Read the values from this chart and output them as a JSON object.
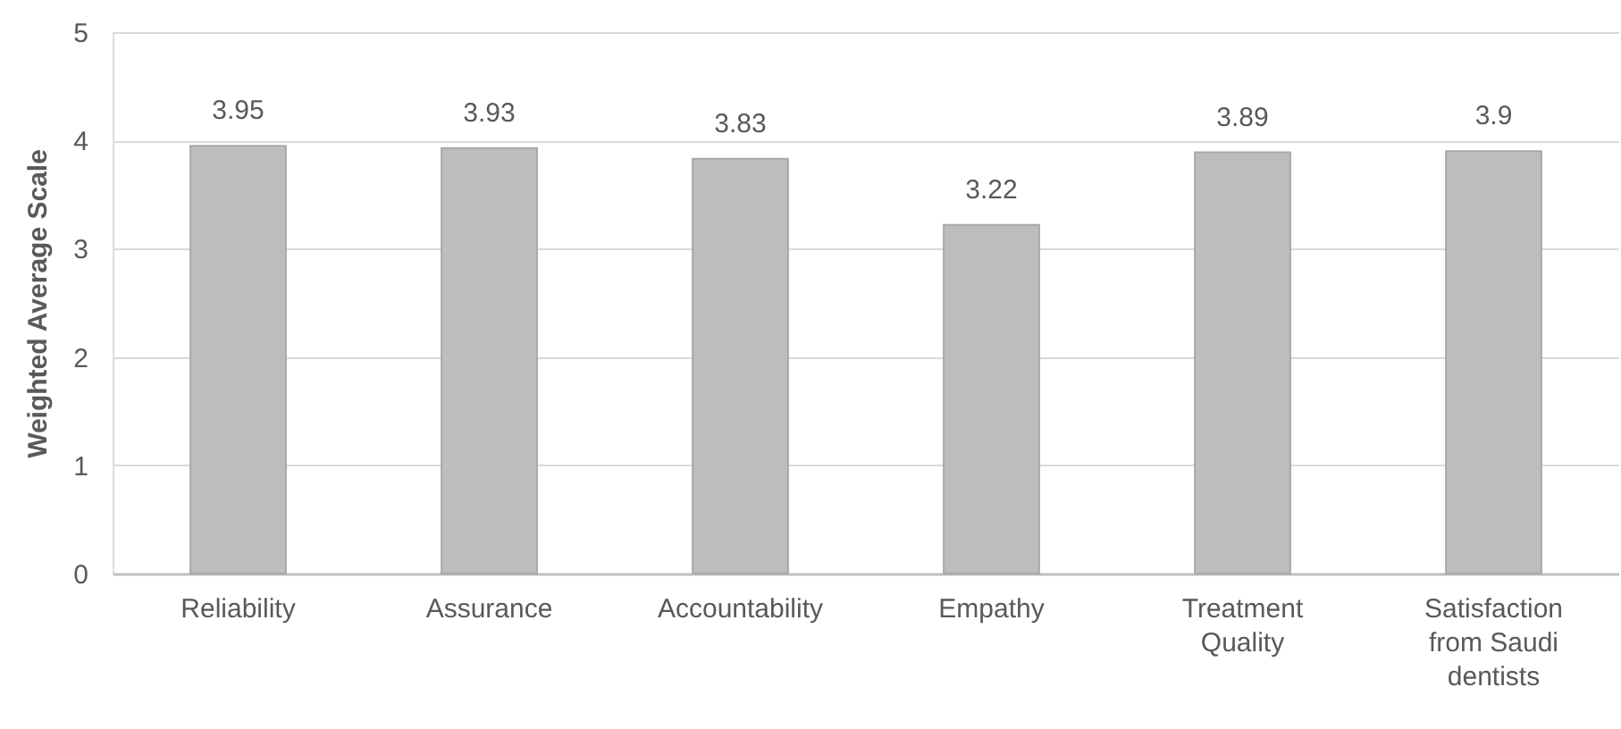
{
  "chart_data": {
    "type": "bar",
    "ylabel": "Weighted Average Scale",
    "categories": [
      "Reliability",
      "Assurance",
      "Accountability",
      "Empathy",
      "Treatment Quality",
      "Satisfaction from Saudi dentists"
    ],
    "values": [
      3.95,
      3.93,
      3.83,
      3.22,
      3.89,
      3.9
    ],
    "color": "#bdbdbd",
    "ylim": [
      0,
      5
    ],
    "yticks": [
      0,
      1,
      2,
      3,
      4,
      5
    ],
    "grid": "y",
    "data_labels": true
  }
}
